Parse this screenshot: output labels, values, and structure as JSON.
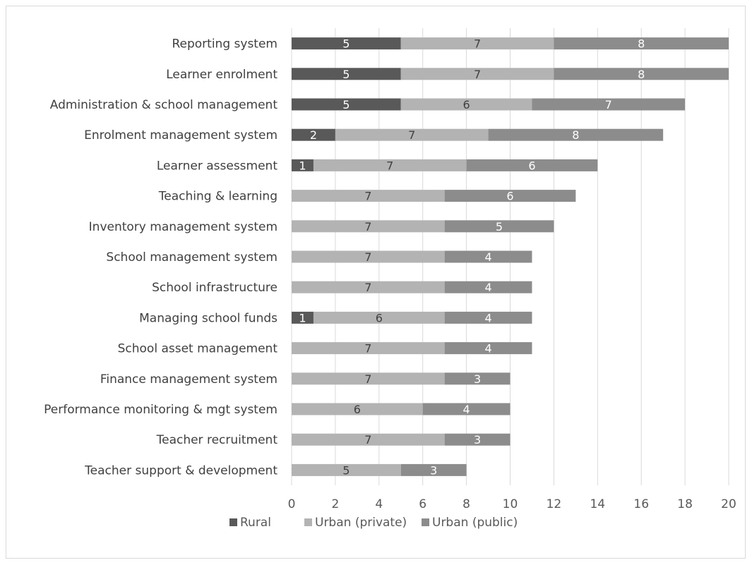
{
  "chart_data": {
    "type": "bar",
    "orientation": "horizontal",
    "stacked": true,
    "categories": [
      "Reporting system",
      "Learner enrolment",
      "Administration & school management",
      "Enrolment management system",
      "Learner assessment",
      "Teaching & learning",
      "Inventory management system",
      "School management system",
      "School infrastructure",
      "Managing school funds",
      "School asset management",
      "Finance management system",
      "Performance monitoring & mgt system",
      "Teacher recruitment",
      "Teacher support & development"
    ],
    "series": [
      {
        "name": "Rural",
        "color": "#595959",
        "label_color": "#ffffff",
        "values": [
          5,
          5,
          5,
          2,
          1,
          0,
          0,
          0,
          0,
          1,
          0,
          0,
          0,
          0,
          0
        ]
      },
      {
        "name": "Urban (private)",
        "color": "#b3b3b3",
        "label_color": "#404040",
        "values": [
          7,
          7,
          6,
          7,
          7,
          7,
          7,
          7,
          7,
          6,
          7,
          7,
          6,
          7,
          5
        ]
      },
      {
        "name": "Urban (public)",
        "color": "#8c8c8c",
        "label_color": "#ffffff",
        "values": [
          8,
          8,
          7,
          8,
          6,
          6,
          5,
          4,
          4,
          4,
          4,
          3,
          4,
          3,
          3
        ]
      }
    ],
    "xlim": [
      0,
      20
    ],
    "x_ticks": [
      "0",
      "2",
      "4",
      "6",
      "8",
      "10",
      "12",
      "14",
      "16",
      "18",
      "20"
    ],
    "grid": "vertical",
    "legend_position": "bottom",
    "gridline_color": "#d9d9d9"
  }
}
